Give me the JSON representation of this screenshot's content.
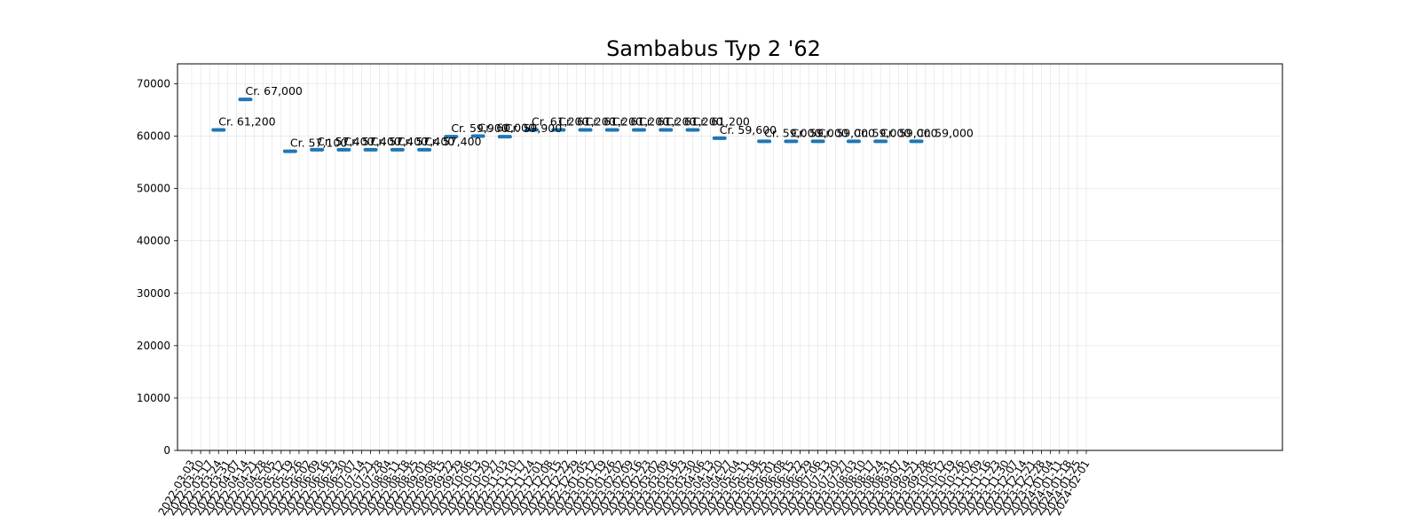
{
  "chart_data": {
    "type": "line",
    "title": "Sambabus Typ 2 '62",
    "xlabel": "",
    "ylabel": "",
    "ylim": [
      0,
      73800
    ],
    "y_ticks": [
      0,
      10000,
      20000,
      30000,
      40000,
      50000,
      60000,
      70000
    ],
    "grid": true,
    "color": "#1f77b4",
    "x_dates": [
      "2022-03-03",
      "2022-03-10",
      "2022-03-17",
      "2022-03-24",
      "2022-03-31",
      "2022-04-07",
      "2022-04-14",
      "2022-04-21",
      "2022-04-28",
      "2022-05-05",
      "2022-05-12",
      "2022-05-19",
      "2022-05-26",
      "2022-06-02",
      "2022-06-09",
      "2022-06-16",
      "2022-06-23",
      "2022-06-30",
      "2022-07-07",
      "2022-07-14",
      "2022-07-21",
      "2022-07-28",
      "2022-08-04",
      "2022-08-11",
      "2022-08-18",
      "2022-08-25",
      "2022-09-01",
      "2022-09-08",
      "2022-09-15",
      "2022-09-22",
      "2022-09-29",
      "2022-10-06",
      "2022-10-13",
      "2022-10-20",
      "2022-10-27",
      "2022-11-03",
      "2022-11-10",
      "2022-11-17",
      "2022-11-24",
      "2022-12-01",
      "2022-12-08",
      "2022-12-15",
      "2022-12-22",
      "2022-12-29",
      "2023-01-05",
      "2023-01-12",
      "2023-01-19",
      "2023-01-26",
      "2023-02-02",
      "2023-02-09",
      "2023-02-16",
      "2023-02-23",
      "2023-03-02",
      "2023-03-09",
      "2023-03-16",
      "2023-03-23",
      "2023-03-30",
      "2023-04-06",
      "2023-04-13",
      "2023-04-20",
      "2023-04-27",
      "2023-05-04",
      "2023-05-11",
      "2023-05-18",
      "2023-05-25",
      "2023-06-01",
      "2023-06-08",
      "2023-06-15",
      "2023-06-22",
      "2023-06-29",
      "2023-07-06",
      "2023-07-13",
      "2023-07-20",
      "2023-07-27",
      "2023-08-03",
      "2023-08-10",
      "2023-08-17",
      "2023-08-24",
      "2023-08-31",
      "2023-09-07",
      "2023-09-14",
      "2023-09-21",
      "2023-09-28",
      "2023-10-05",
      "2023-10-12",
      "2023-10-19",
      "2023-10-26",
      "2023-11-02",
      "2023-11-09",
      "2023-11-16",
      "2023-11-23",
      "2023-11-30",
      "2023-12-07",
      "2023-12-14",
      "2023-12-21",
      "2023-12-28",
      "2024-01-04",
      "2024-01-11",
      "2024-01-18",
      "2024-01-25",
      "2024-02-01"
    ],
    "points": [
      {
        "x": "2022-03-24",
        "y": 61200,
        "label": "Cr. 61,200"
      },
      {
        "x": "2022-04-14",
        "y": 67000,
        "label": "Cr. 67,000"
      },
      {
        "x": "2022-05-19",
        "y": 57100,
        "label": "Cr. 57,100"
      },
      {
        "x": "2022-06-09",
        "y": 57400,
        "label": "Cr. 57,400"
      },
      {
        "x": "2022-06-30",
        "y": 57400,
        "label": "Cr. 57,400"
      },
      {
        "x": "2022-07-21",
        "y": 57400,
        "label": "Cr. 57,400"
      },
      {
        "x": "2022-08-11",
        "y": 57400,
        "label": "Cr. 57,400"
      },
      {
        "x": "2022-09-01",
        "y": 57400,
        "label": "Cr. 57,400"
      },
      {
        "x": "2022-09-22",
        "y": 59900,
        "label": "Cr. 59,900"
      },
      {
        "x": "2022-10-13",
        "y": 60000,
        "label": "Cr. 60,000"
      },
      {
        "x": "2022-11-03",
        "y": 59900,
        "label": "Cr. 59,900"
      },
      {
        "x": "2022-11-24",
        "y": 61200,
        "label": "Cr. 61,200"
      },
      {
        "x": "2022-12-15",
        "y": 61200,
        "label": "Cr. 61,200"
      },
      {
        "x": "2023-01-05",
        "y": 61200,
        "label": "Cr. 61,200"
      },
      {
        "x": "2023-01-26",
        "y": 61200,
        "label": "Cr. 61,200"
      },
      {
        "x": "2023-02-16",
        "y": 61200,
        "label": "Cr. 61,200"
      },
      {
        "x": "2023-03-09",
        "y": 61200,
        "label": "Cr. 61,200"
      },
      {
        "x": "2023-03-30",
        "y": 61200,
        "label": "Cr. 61,200"
      },
      {
        "x": "2023-04-20",
        "y": 59600,
        "label": "Cr. 59,600"
      },
      {
        "x": "2023-05-25",
        "y": 59000,
        "label": "Cr. 59,000"
      },
      {
        "x": "2023-06-15",
        "y": 59000,
        "label": "Cr. 59,000"
      },
      {
        "x": "2023-07-06",
        "y": 59000,
        "label": "Cr. 59,000"
      },
      {
        "x": "2023-08-03",
        "y": 59000,
        "label": "Cr. 59,000"
      },
      {
        "x": "2023-08-24",
        "y": 59000,
        "label": "Cr. 59,000"
      },
      {
        "x": "2023-09-21",
        "y": 59000,
        "label": "Cr. 59,000"
      }
    ]
  }
}
